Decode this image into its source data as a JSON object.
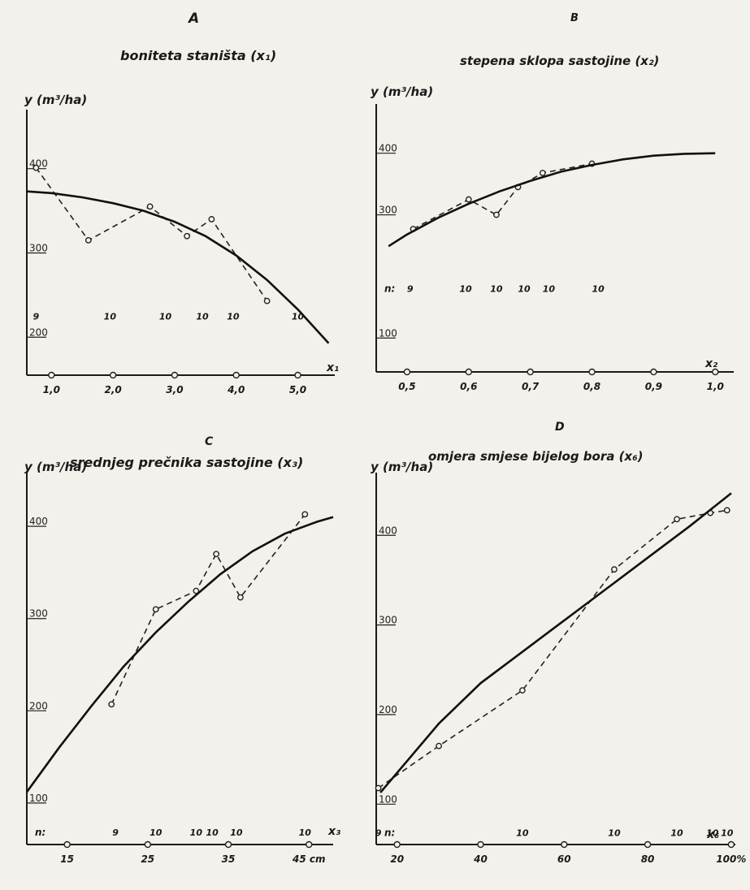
{
  "chart_data": [
    {
      "type": "line",
      "panel": "A",
      "title": "boniteta staništa (x₁)",
      "ylabel": "y (m³/ha)",
      "xlabel": "x₁",
      "xlim": [
        0.6,
        5.6
      ],
      "ylim": [
        155,
        470
      ],
      "x_ticks": [
        1.0,
        2.0,
        3.0,
        4.0,
        5.0
      ],
      "x_tick_labels": [
        "1,0",
        "2,0",
        "3,0",
        "4,0",
        "5,0"
      ],
      "y_ticks": [
        200,
        300,
        400
      ],
      "y_tick_labels": [
        "200",
        "300",
        "400"
      ],
      "n_label": "",
      "n_y": 225,
      "n_values": [
        {
          "x": 0.75,
          "label": "9"
        },
        {
          "x": 1.95,
          "label": "10"
        },
        {
          "x": 2.85,
          "label": "10"
        },
        {
          "x": 3.45,
          "label": "10"
        },
        {
          "x": 3.95,
          "label": "10"
        },
        {
          "x": 5.0,
          "label": "10"
        }
      ],
      "series": [
        {
          "name": "",
          "style": "dashed",
          "points": [
            [
              0.75,
              401
            ],
            [
              1.6,
              315
            ],
            [
              2.6,
              355
            ],
            [
              3.2,
              320
            ],
            [
              3.6,
              340
            ],
            [
              4.5,
              243
            ]
          ]
        },
        {
          "name": "",
          "style": "solid",
          "points": [
            [
              0.6,
              373
            ],
            [
              1.0,
              371
            ],
            [
              1.5,
              366
            ],
            [
              2.0,
              359
            ],
            [
              2.5,
              350
            ],
            [
              3.0,
              337
            ],
            [
              3.5,
              320
            ],
            [
              4.0,
              297
            ],
            [
              4.5,
              268
            ],
            [
              5.0,
              233
            ],
            [
              5.5,
              193
            ]
          ]
        }
      ]
    },
    {
      "type": "line",
      "panel": "B",
      "title": "stepena sklopa sastojine (x₂)",
      "ylabel": "y (m³/ha)",
      "xlabel": "x₂",
      "xlim": [
        0.45,
        1.03
      ],
      "ylim": [
        45,
        480
      ],
      "x_ticks": [
        0.5,
        0.6,
        0.7,
        0.8,
        0.9,
        1.0
      ],
      "x_tick_labels": [
        "0,5",
        "0,6",
        "0,7",
        "0,8",
        "0,9",
        "1,0"
      ],
      "y_ticks": [
        100,
        300,
        400
      ],
      "y_tick_labels": [
        "100",
        "300",
        "400"
      ],
      "n_label": "n:",
      "n_y": 180,
      "n_values": [
        {
          "x": 0.505,
          "label": "9"
        },
        {
          "x": 0.595,
          "label": "10"
        },
        {
          "x": 0.645,
          "label": "10"
        },
        {
          "x": 0.69,
          "label": "10"
        },
        {
          "x": 0.73,
          "label": "10"
        },
        {
          "x": 0.81,
          "label": "10"
        }
      ],
      "series": [
        {
          "name": "",
          "style": "dashed",
          "points": [
            [
              0.51,
              277
            ],
            [
              0.6,
              325
            ],
            [
              0.645,
              300
            ],
            [
              0.68,
              345
            ],
            [
              0.72,
              368
            ],
            [
              0.8,
              383
            ]
          ]
        },
        {
          "name": "",
          "style": "solid",
          "points": [
            [
              0.47,
              249
            ],
            [
              0.5,
              268
            ],
            [
              0.55,
              295
            ],
            [
              0.6,
              318
            ],
            [
              0.65,
              338
            ],
            [
              0.7,
              355
            ],
            [
              0.75,
              370
            ],
            [
              0.8,
              381
            ],
            [
              0.85,
              390
            ],
            [
              0.9,
              396
            ],
            [
              0.95,
              399
            ],
            [
              1.0,
              400
            ]
          ]
        }
      ]
    },
    {
      "type": "line",
      "panel": "C",
      "title": "srednjeg prečnika sastojine (x₃)",
      "ylabel": "y (m³/ha)",
      "xlabel": "x₃",
      "xlim": [
        10,
        48
      ],
      "ylim": [
        55,
        460
      ],
      "x_ticks": [
        15,
        25,
        35,
        45
      ],
      "x_tick_labels": [
        "15",
        "25",
        "35",
        "45 cm"
      ],
      "y_ticks": [
        100,
        200,
        300,
        400
      ],
      "y_tick_labels": [
        "100",
        "200",
        "300",
        "400"
      ],
      "n_label": "n:",
      "n_y": 68,
      "n_values": [
        {
          "x": 21.0,
          "label": "9"
        },
        {
          "x": 26.0,
          "label": "10"
        },
        {
          "x": 31.0,
          "label": "10"
        },
        {
          "x": 33.0,
          "label": "10"
        },
        {
          "x": 36.0,
          "label": "10"
        },
        {
          "x": 44.5,
          "label": "10"
        }
      ],
      "series": [
        {
          "name": "",
          "style": "dashed",
          "points": [
            [
              20.5,
              207
            ],
            [
              26,
              310
            ],
            [
              31,
              330
            ],
            [
              33.5,
              370
            ],
            [
              36.5,
              323
            ],
            [
              44.5,
              413
            ]
          ]
        },
        {
          "name": "",
          "style": "solid",
          "points": [
            [
              10,
              112
            ],
            [
              14,
              160
            ],
            [
              18,
              205
            ],
            [
              22,
              248
            ],
            [
              26,
              285
            ],
            [
              30,
              318
            ],
            [
              34,
              348
            ],
            [
              38,
              373
            ],
            [
              42,
              392
            ],
            [
              46,
              405
            ],
            [
              48,
              410
            ]
          ]
        }
      ]
    },
    {
      "type": "line",
      "panel": "D",
      "title": "omjera smjese bijelog bora (x₆)",
      "ylabel": "y (m³/ha)",
      "xlabel": "x₆",
      "xlim": [
        15,
        101
      ],
      "ylim": [
        55,
        470
      ],
      "x_ticks": [
        20,
        40,
        60,
        80,
        100
      ],
      "x_tick_labels": [
        "20",
        "40",
        "60",
        "80",
        "100%"
      ],
      "y_ticks": [
        100,
        200,
        300,
        400
      ],
      "y_tick_labels": [
        "100",
        "200",
        "300",
        "400"
      ],
      "n_label": "n:",
      "n_y": 68,
      "n_values": [
        {
          "x": 15.5,
          "label": "9"
        },
        {
          "x": 50.0,
          "label": "10"
        },
        {
          "x": 72.0,
          "label": "10"
        },
        {
          "x": 87.0,
          "label": "10"
        },
        {
          "x": 95.5,
          "label": "10"
        },
        {
          "x": 99.0,
          "label": "10"
        }
      ],
      "series": [
        {
          "name": "",
          "style": "dashed",
          "points": [
            [
              15.5,
              118
            ],
            [
              30,
              165
            ],
            [
              50,
              227
            ],
            [
              72,
              362
            ],
            [
              87,
              418
            ],
            [
              95,
              425
            ],
            [
              99,
              428
            ]
          ]
        },
        {
          "name": "",
          "style": "solid",
          "points": [
            [
              16,
              113
            ],
            [
              20,
              135
            ],
            [
              30,
              190
            ],
            [
              40,
              235
            ],
            [
              50,
              270
            ],
            [
              60,
              305
            ],
            [
              70,
              340
            ],
            [
              80,
              375
            ],
            [
              90,
              410
            ],
            [
              100,
              447
            ]
          ]
        }
      ]
    }
  ],
  "panel_letters": [
    "A",
    "B",
    "C",
    "D"
  ]
}
